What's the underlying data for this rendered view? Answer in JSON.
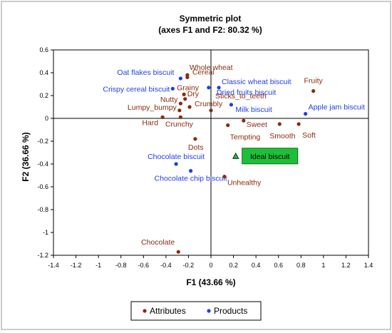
{
  "chart_data": {
    "type": "scatter",
    "title": "Symmetric plot",
    "subtitle": "(axes F1 and F2: 80.32 %)",
    "xlabel": "F1 (43.66 %)",
    "ylabel": "F2 (36.66 %)",
    "xlim": [
      -1.4,
      1.4
    ],
    "ylim": [
      -1.2,
      0.6
    ],
    "xticks": [
      "-1.4",
      "-1.2",
      "-1",
      "-0.8",
      "-0.6",
      "-0.4",
      "-0.2",
      "0",
      "0.2",
      "0.4",
      "0.6",
      "0.8",
      "1",
      "1.2",
      "1.4"
    ],
    "yticks": [
      "-1.2",
      "-1",
      "-0.8",
      "-0.6",
      "-0.4",
      "-0.2",
      "0",
      "0.2",
      "0.4",
      "0.6"
    ],
    "legend_position": "bottom",
    "colors": {
      "attributes": "#8b2a0e",
      "products": "#1f3fe0",
      "ideal_fill": "#1fbf3a",
      "ideal_border": "#0b6b16"
    },
    "series": [
      {
        "name": "Attributes",
        "points": [
          {
            "label": "Whole wheat",
            "x": -0.21,
            "y": 0.38
          },
          {
            "label": "Cereal",
            "x": -0.21,
            "y": 0.36
          },
          {
            "label": "Grainy",
            "x": -0.24,
            "y": 0.21
          },
          {
            "label": "Dry",
            "x": -0.23,
            "y": 0.17
          },
          {
            "label": "Nutty",
            "x": -0.27,
            "y": 0.13
          },
          {
            "label": "Lumpy_bumpy",
            "x": -0.28,
            "y": 0.07
          },
          {
            "label": "Hard",
            "x": -0.43,
            "y": 0.01
          },
          {
            "label": "Crunchy",
            "x": -0.27,
            "y": 0.01
          },
          {
            "label": "Crumbly",
            "x": -0.19,
            "y": 0.1
          },
          {
            "label": "Sticks_to_teeth",
            "x": 0.0,
            "y": 0.07
          },
          {
            "label": "Fruity",
            "x": 0.91,
            "y": 0.24
          },
          {
            "label": "Sweet",
            "x": 0.29,
            "y": -0.02
          },
          {
            "label": "Tempting",
            "x": 0.15,
            "y": -0.06
          },
          {
            "label": "Smooth",
            "x": 0.61,
            "y": -0.05
          },
          {
            "label": "Soft",
            "x": 0.78,
            "y": -0.05
          },
          {
            "label": "Dots",
            "x": -0.14,
            "y": -0.18
          },
          {
            "label": "Unhealthy",
            "x": 0.12,
            "y": -0.51
          },
          {
            "label": "Chocolate",
            "x": -0.29,
            "y": -1.17
          }
        ]
      },
      {
        "name": "Products",
        "points": [
          {
            "label": "Oat flakes biscuit",
            "x": -0.27,
            "y": 0.35
          },
          {
            "label": "Classic wheat biscuit",
            "x": 0.07,
            "y": 0.27
          },
          {
            "label": "Crispy cereal biscuit",
            "x": -0.34,
            "y": 0.26
          },
          {
            "label": "Dried fruits biscuit",
            "x": -0.02,
            "y": 0.27
          },
          {
            "label": "Milk biscuit",
            "x": 0.18,
            "y": 0.12
          },
          {
            "label": "Apple jam biscuit",
            "x": 0.84,
            "y": 0.04
          },
          {
            "label": "Chocolate biscuit",
            "x": -0.31,
            "y": -0.4
          },
          {
            "label": "Chocolate chip biscuit",
            "x": -0.18,
            "y": -0.46
          }
        ]
      }
    ],
    "ideal": {
      "label": "Ideal biscuit",
      "x": 0.22,
      "y": -0.33
    }
  }
}
